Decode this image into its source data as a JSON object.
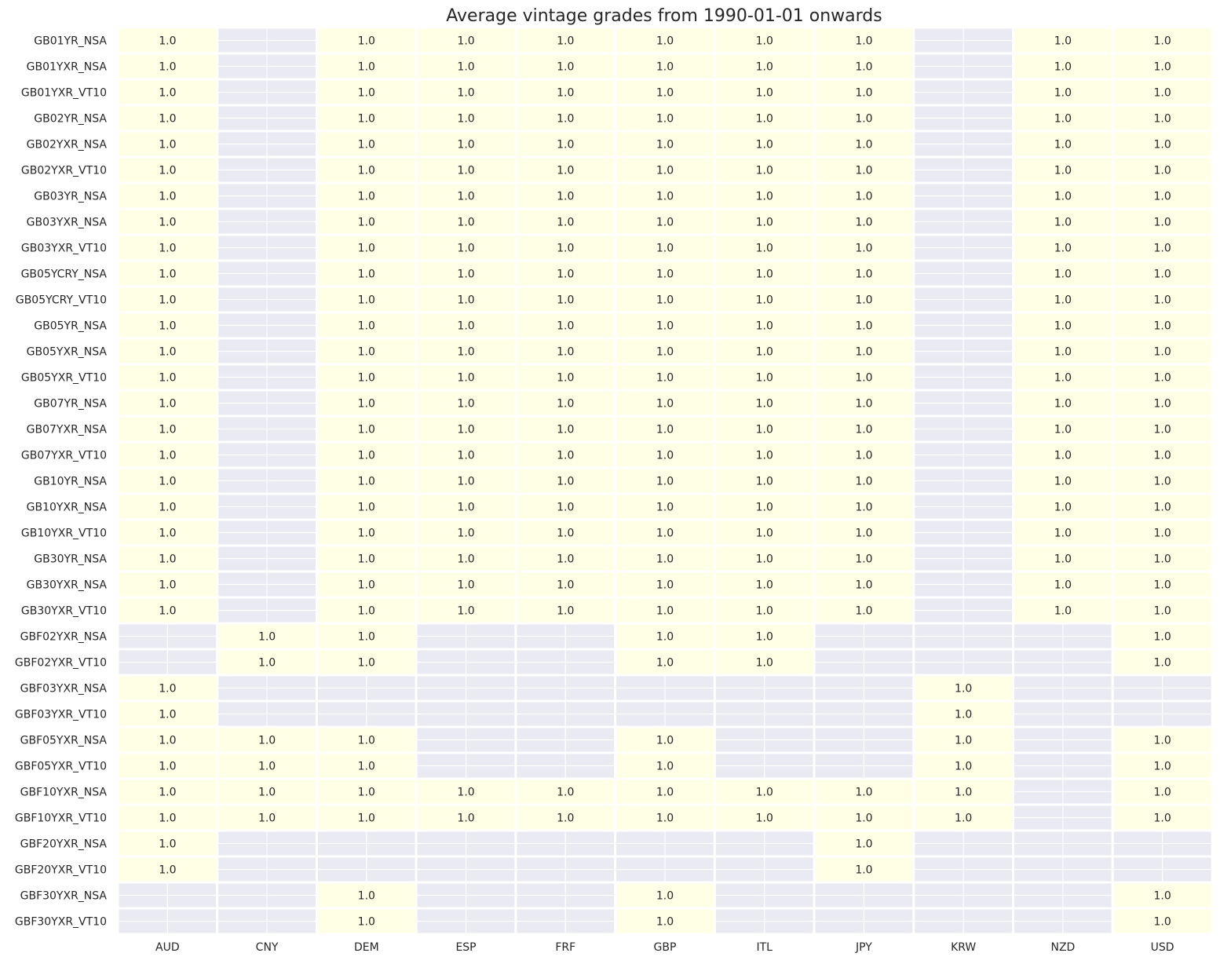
{
  "chart_data": {
    "type": "heatmap",
    "title": "Average vintage grades from 1990-01-01 onwards",
    "xlabel": "",
    "ylabel": "",
    "columns": [
      "AUD",
      "CNY",
      "DEM",
      "ESP",
      "FRF",
      "GBP",
      "ITL",
      "JPY",
      "KRW",
      "NZD",
      "USD"
    ],
    "rows": [
      "GB01YR_NSA",
      "GB01YXR_NSA",
      "GB01YXR_VT10",
      "GB02YR_NSA",
      "GB02YXR_NSA",
      "GB02YXR_VT10",
      "GB03YR_NSA",
      "GB03YXR_NSA",
      "GB03YXR_VT10",
      "GB05YCRY_NSA",
      "GB05YCRY_VT10",
      "GB05YR_NSA",
      "GB05YXR_NSA",
      "GB05YXR_VT10",
      "GB07YR_NSA",
      "GB07YXR_NSA",
      "GB07YXR_VT10",
      "GB10YR_NSA",
      "GB10YXR_NSA",
      "GB10YXR_VT10",
      "GB30YR_NSA",
      "GB30YXR_NSA",
      "GB30YXR_VT10",
      "GBF02YXR_NSA",
      "GBF02YXR_VT10",
      "GBF03YXR_NSA",
      "GBF03YXR_VT10",
      "GBF05YXR_NSA",
      "GBF05YXR_VT10",
      "GBF10YXR_NSA",
      "GBF10YXR_VT10",
      "GBF20YXR_NSA",
      "GBF20YXR_VT10",
      "GBF30YXR_NSA",
      "GBF30YXR_VT10"
    ],
    "values": [
      [
        1.0,
        null,
        1.0,
        1.0,
        1.0,
        1.0,
        1.0,
        1.0,
        null,
        1.0,
        1.0
      ],
      [
        1.0,
        null,
        1.0,
        1.0,
        1.0,
        1.0,
        1.0,
        1.0,
        null,
        1.0,
        1.0
      ],
      [
        1.0,
        null,
        1.0,
        1.0,
        1.0,
        1.0,
        1.0,
        1.0,
        null,
        1.0,
        1.0
      ],
      [
        1.0,
        null,
        1.0,
        1.0,
        1.0,
        1.0,
        1.0,
        1.0,
        null,
        1.0,
        1.0
      ],
      [
        1.0,
        null,
        1.0,
        1.0,
        1.0,
        1.0,
        1.0,
        1.0,
        null,
        1.0,
        1.0
      ],
      [
        1.0,
        null,
        1.0,
        1.0,
        1.0,
        1.0,
        1.0,
        1.0,
        null,
        1.0,
        1.0
      ],
      [
        1.0,
        null,
        1.0,
        1.0,
        1.0,
        1.0,
        1.0,
        1.0,
        null,
        1.0,
        1.0
      ],
      [
        1.0,
        null,
        1.0,
        1.0,
        1.0,
        1.0,
        1.0,
        1.0,
        null,
        1.0,
        1.0
      ],
      [
        1.0,
        null,
        1.0,
        1.0,
        1.0,
        1.0,
        1.0,
        1.0,
        null,
        1.0,
        1.0
      ],
      [
        1.0,
        null,
        1.0,
        1.0,
        1.0,
        1.0,
        1.0,
        1.0,
        null,
        1.0,
        1.0
      ],
      [
        1.0,
        null,
        1.0,
        1.0,
        1.0,
        1.0,
        1.0,
        1.0,
        null,
        1.0,
        1.0
      ],
      [
        1.0,
        null,
        1.0,
        1.0,
        1.0,
        1.0,
        1.0,
        1.0,
        null,
        1.0,
        1.0
      ],
      [
        1.0,
        null,
        1.0,
        1.0,
        1.0,
        1.0,
        1.0,
        1.0,
        null,
        1.0,
        1.0
      ],
      [
        1.0,
        null,
        1.0,
        1.0,
        1.0,
        1.0,
        1.0,
        1.0,
        null,
        1.0,
        1.0
      ],
      [
        1.0,
        null,
        1.0,
        1.0,
        1.0,
        1.0,
        1.0,
        1.0,
        null,
        1.0,
        1.0
      ],
      [
        1.0,
        null,
        1.0,
        1.0,
        1.0,
        1.0,
        1.0,
        1.0,
        null,
        1.0,
        1.0
      ],
      [
        1.0,
        null,
        1.0,
        1.0,
        1.0,
        1.0,
        1.0,
        1.0,
        null,
        1.0,
        1.0
      ],
      [
        1.0,
        null,
        1.0,
        1.0,
        1.0,
        1.0,
        1.0,
        1.0,
        null,
        1.0,
        1.0
      ],
      [
        1.0,
        null,
        1.0,
        1.0,
        1.0,
        1.0,
        1.0,
        1.0,
        null,
        1.0,
        1.0
      ],
      [
        1.0,
        null,
        1.0,
        1.0,
        1.0,
        1.0,
        1.0,
        1.0,
        null,
        1.0,
        1.0
      ],
      [
        1.0,
        null,
        1.0,
        1.0,
        1.0,
        1.0,
        1.0,
        1.0,
        null,
        1.0,
        1.0
      ],
      [
        1.0,
        null,
        1.0,
        1.0,
        1.0,
        1.0,
        1.0,
        1.0,
        null,
        1.0,
        1.0
      ],
      [
        1.0,
        null,
        1.0,
        1.0,
        1.0,
        1.0,
        1.0,
        1.0,
        null,
        1.0,
        1.0
      ],
      [
        null,
        1.0,
        1.0,
        null,
        null,
        1.0,
        1.0,
        null,
        null,
        null,
        1.0
      ],
      [
        null,
        1.0,
        1.0,
        null,
        null,
        1.0,
        1.0,
        null,
        null,
        null,
        1.0
      ],
      [
        1.0,
        null,
        null,
        null,
        null,
        null,
        null,
        null,
        1.0,
        null,
        null
      ],
      [
        1.0,
        null,
        null,
        null,
        null,
        null,
        null,
        null,
        1.0,
        null,
        null
      ],
      [
        1.0,
        1.0,
        1.0,
        null,
        null,
        1.0,
        null,
        null,
        1.0,
        null,
        1.0
      ],
      [
        1.0,
        1.0,
        1.0,
        null,
        null,
        1.0,
        null,
        null,
        1.0,
        null,
        1.0
      ],
      [
        1.0,
        1.0,
        1.0,
        1.0,
        1.0,
        1.0,
        1.0,
        1.0,
        1.0,
        null,
        1.0
      ],
      [
        1.0,
        1.0,
        1.0,
        1.0,
        1.0,
        1.0,
        1.0,
        1.0,
        1.0,
        null,
        1.0
      ],
      [
        1.0,
        null,
        null,
        null,
        null,
        null,
        null,
        1.0,
        null,
        null,
        null
      ],
      [
        1.0,
        null,
        null,
        null,
        null,
        null,
        null,
        1.0,
        null,
        null,
        null
      ],
      [
        null,
        null,
        1.0,
        null,
        null,
        1.0,
        null,
        null,
        null,
        null,
        1.0
      ],
      [
        null,
        null,
        1.0,
        null,
        null,
        1.0,
        null,
        null,
        null,
        null,
        1.0
      ]
    ],
    "cell_color": "#ffffe5",
    "missing_color": "#eaeaf2",
    "grid_line_color": "#ffffff",
    "value_format": "0.0",
    "legend": "none"
  }
}
